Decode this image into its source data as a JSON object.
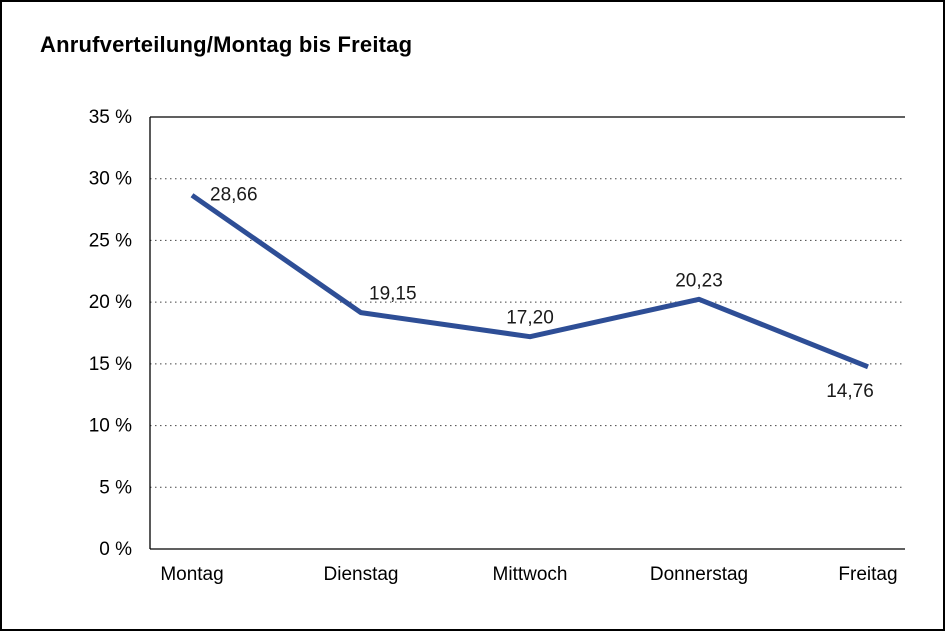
{
  "title": "Anrufverteilung/Montag bis Freitag",
  "chart_data": {
    "type": "line",
    "title": "Anrufverteilung/Montag bis Freitag",
    "categories": [
      "Montag",
      "Dienstag",
      "Mittwoch",
      "Donnerstag",
      "Freitag"
    ],
    "values": [
      28.66,
      19.15,
      17.2,
      20.23,
      14.76
    ],
    "value_labels": [
      "28,66",
      "19,15",
      "17,20",
      "20,23",
      "14,76"
    ],
    "value_label_positions": [
      "right",
      "above-right",
      "above",
      "above",
      "below-left"
    ],
    "xlabel": "",
    "ylabel": "",
    "ylim": [
      0,
      35
    ],
    "yticks": [
      {
        "value": 0,
        "label": "0 %"
      },
      {
        "value": 5,
        "label": "5 %"
      },
      {
        "value": 10,
        "label": "10 %"
      },
      {
        "value": 15,
        "label": "15 %"
      },
      {
        "value": 20,
        "label": "20 %"
      },
      {
        "value": 25,
        "label": "25 %"
      },
      {
        "value": 30,
        "label": "30 %"
      },
      {
        "value": 35,
        "label": "35 %"
      }
    ],
    "grid": "horizontal-dotted",
    "legend": "none",
    "line_color": "#2E4E96",
    "axis_color": "#000000",
    "grid_color": "#444444",
    "label_color": "#1a1a1a"
  }
}
